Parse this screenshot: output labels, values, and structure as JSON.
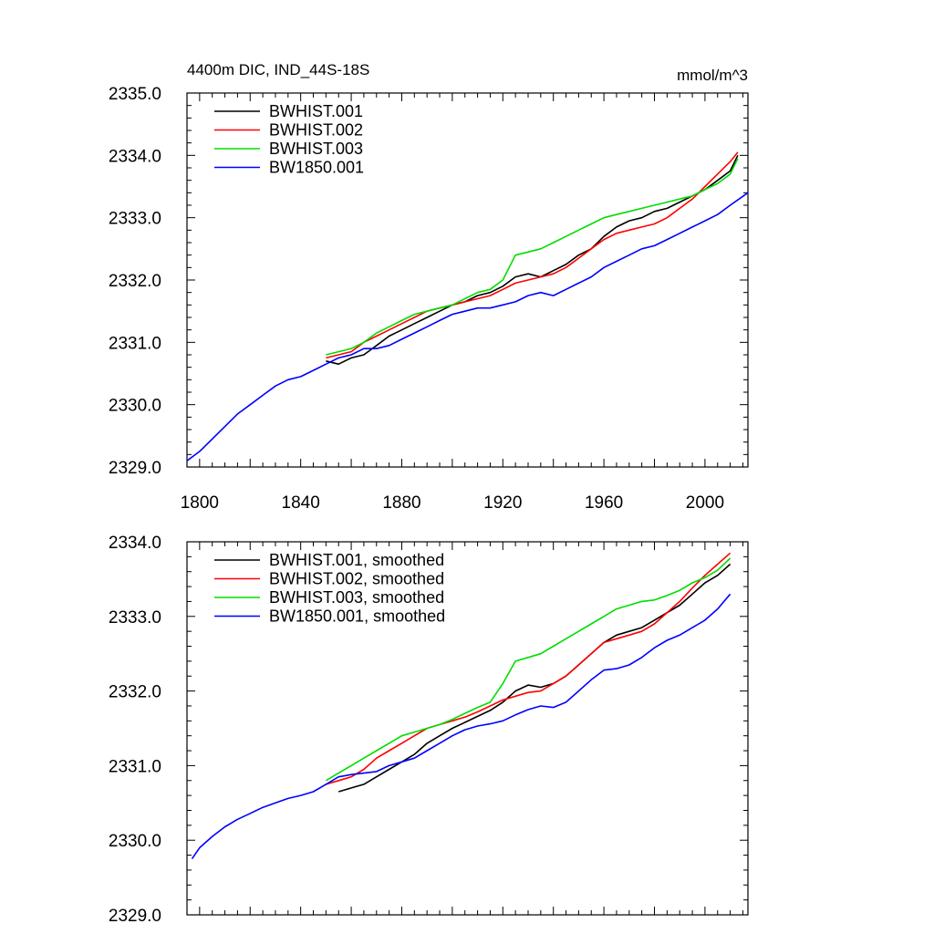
{
  "figure": {
    "title_left": "4400m DIC, IND_44S-18S",
    "title_right": "mmol/m^3"
  },
  "colors": {
    "BWHIST.001": "#000000",
    "BWHIST.002": "#ff0000",
    "BWHIST.003": "#00dd00",
    "BW1850.001": "#0000ff"
  },
  "chart_data": [
    {
      "type": "line",
      "title": "4400m DIC, IND_44S-18S",
      "units": "mmol/m^3",
      "xlim": [
        1795,
        2017
      ],
      "ylim": [
        2329.0,
        2335.0
      ],
      "xticks": [
        1800,
        1840,
        1880,
        1920,
        1960,
        2000
      ],
      "yticks": [
        2329.0,
        2330.0,
        2331.0,
        2332.0,
        2333.0,
        2334.0,
        2335.0
      ],
      "ytick_labels": [
        "2329.0",
        "2330.0",
        "2331.0",
        "2332.0",
        "2333.0",
        "2334.0",
        "2335.0"
      ],
      "xtick_labels": [
        "1800",
        "1840",
        "1880",
        "1920",
        "1960",
        "2000"
      ],
      "legend": "top-left",
      "series": [
        {
          "name": "BWHIST.001",
          "x": [
            1850,
            1855,
            1860,
            1865,
            1870,
            1875,
            1880,
            1885,
            1890,
            1895,
            1900,
            1905,
            1910,
            1915,
            1920,
            1925,
            1930,
            1935,
            1940,
            1945,
            1950,
            1955,
            1960,
            1965,
            1970,
            1975,
            1980,
            1985,
            1990,
            1995,
            2000,
            2005,
            2010,
            2013
          ],
          "y": [
            2330.7,
            2330.65,
            2330.75,
            2330.8,
            2330.95,
            2331.1,
            2331.2,
            2331.3,
            2331.4,
            2331.5,
            2331.6,
            2331.65,
            2331.75,
            2331.8,
            2331.9,
            2332.05,
            2332.1,
            2332.05,
            2332.15,
            2332.25,
            2332.4,
            2332.5,
            2332.7,
            2332.85,
            2332.95,
            2333.0,
            2333.1,
            2333.15,
            2333.25,
            2333.35,
            2333.45,
            2333.6,
            2333.75,
            2334.0
          ]
        },
        {
          "name": "BWHIST.002",
          "x": [
            1850,
            1855,
            1860,
            1865,
            1870,
            1875,
            1880,
            1885,
            1890,
            1895,
            1900,
            1905,
            1910,
            1915,
            1920,
            1925,
            1930,
            1935,
            1940,
            1945,
            1950,
            1955,
            1960,
            1965,
            1970,
            1975,
            1980,
            1985,
            1990,
            1995,
            2000,
            2005,
            2010,
            2013
          ],
          "y": [
            2330.75,
            2330.8,
            2330.85,
            2331.0,
            2331.1,
            2331.2,
            2331.3,
            2331.4,
            2331.5,
            2331.55,
            2331.6,
            2331.65,
            2331.7,
            2331.75,
            2331.85,
            2331.95,
            2332.0,
            2332.05,
            2332.1,
            2332.2,
            2332.35,
            2332.5,
            2332.65,
            2332.75,
            2332.8,
            2332.85,
            2332.9,
            2333.0,
            2333.15,
            2333.3,
            2333.5,
            2333.7,
            2333.9,
            2334.05
          ]
        },
        {
          "name": "BWHIST.003",
          "x": [
            1850,
            1855,
            1860,
            1865,
            1870,
            1875,
            1880,
            1885,
            1890,
            1895,
            1900,
            1905,
            1910,
            1915,
            1920,
            1925,
            1930,
            1935,
            1940,
            1945,
            1950,
            1955,
            1960,
            1965,
            1970,
            1975,
            1980,
            1985,
            1990,
            1995,
            2000,
            2005,
            2010,
            2013
          ],
          "y": [
            2330.8,
            2330.85,
            2330.9,
            2331.0,
            2331.15,
            2331.25,
            2331.35,
            2331.45,
            2331.5,
            2331.55,
            2331.6,
            2331.7,
            2331.8,
            2331.85,
            2332.0,
            2332.4,
            2332.45,
            2332.5,
            2332.6,
            2332.7,
            2332.8,
            2332.9,
            2333.0,
            2333.05,
            2333.1,
            2333.15,
            2333.2,
            2333.25,
            2333.3,
            2333.35,
            2333.45,
            2333.55,
            2333.7,
            2333.95
          ]
        },
        {
          "name": "BW1850.001",
          "x": [
            1795,
            1800,
            1805,
            1810,
            1815,
            1820,
            1825,
            1830,
            1835,
            1840,
            1845,
            1850,
            1855,
            1860,
            1865,
            1870,
            1875,
            1880,
            1885,
            1890,
            1895,
            1900,
            1905,
            1910,
            1915,
            1920,
            1925,
            1930,
            1935,
            1940,
            1945,
            1950,
            1955,
            1960,
            1965,
            1970,
            1975,
            1980,
            1985,
            1990,
            1995,
            2000,
            2005,
            2010,
            2017
          ],
          "y": [
            2329.1,
            2329.25,
            2329.45,
            2329.65,
            2329.85,
            2330.0,
            2330.15,
            2330.3,
            2330.4,
            2330.45,
            2330.55,
            2330.65,
            2330.75,
            2330.8,
            2330.9,
            2330.9,
            2330.95,
            2331.05,
            2331.15,
            2331.25,
            2331.35,
            2331.45,
            2331.5,
            2331.55,
            2331.55,
            2331.6,
            2331.65,
            2331.75,
            2331.8,
            2331.75,
            2331.85,
            2331.95,
            2332.05,
            2332.2,
            2332.3,
            2332.4,
            2332.5,
            2332.55,
            2332.65,
            2332.75,
            2332.85,
            2332.95,
            2333.05,
            2333.2,
            2333.4
          ]
        }
      ]
    },
    {
      "type": "line",
      "title": "",
      "xlim": [
        1795,
        2017
      ],
      "ylim": [
        2329.0,
        2334.0
      ],
      "yticks": [
        2329.0,
        2330.0,
        2331.0,
        2332.0,
        2333.0,
        2334.0
      ],
      "ytick_labels": [
        "2329.0",
        "2330.0",
        "2331.0",
        "2332.0",
        "2333.0",
        "2334.0"
      ],
      "legend": "top-left",
      "series": [
        {
          "name": "BWHIST.001, smoothed",
          "x": [
            1855,
            1860,
            1865,
            1870,
            1875,
            1880,
            1885,
            1890,
            1895,
            1900,
            1905,
            1910,
            1915,
            1920,
            1925,
            1930,
            1935,
            1940,
            1945,
            1950,
            1955,
            1960,
            1965,
            1970,
            1975,
            1980,
            1985,
            1990,
            1995,
            2000,
            2005,
            2010
          ],
          "y": [
            2330.65,
            2330.7,
            2330.75,
            2330.85,
            2330.95,
            2331.05,
            2331.15,
            2331.3,
            2331.4,
            2331.5,
            2331.58,
            2331.66,
            2331.74,
            2331.85,
            2332.0,
            2332.08,
            2332.05,
            2332.1,
            2332.2,
            2332.35,
            2332.5,
            2332.65,
            2332.75,
            2332.8,
            2332.85,
            2332.95,
            2333.05,
            2333.15,
            2333.3,
            2333.45,
            2333.55,
            2333.7
          ]
        },
        {
          "name": "BWHIST.002, smoothed",
          "x": [
            1850,
            1855,
            1860,
            1865,
            1870,
            1875,
            1880,
            1885,
            1890,
            1895,
            1900,
            1905,
            1910,
            1915,
            1920,
            1925,
            1930,
            1935,
            1940,
            1945,
            1950,
            1955,
            1960,
            1965,
            1970,
            1975,
            1980,
            1985,
            1990,
            1995,
            2000,
            2005,
            2010
          ],
          "y": [
            2330.75,
            2330.8,
            2330.85,
            2330.95,
            2331.1,
            2331.2,
            2331.3,
            2331.4,
            2331.5,
            2331.55,
            2331.6,
            2331.65,
            2331.72,
            2331.8,
            2331.88,
            2331.93,
            2331.98,
            2332.0,
            2332.1,
            2332.2,
            2332.35,
            2332.5,
            2332.65,
            2332.7,
            2332.75,
            2332.8,
            2332.9,
            2333.05,
            2333.2,
            2333.38,
            2333.55,
            2333.7,
            2333.85
          ]
        },
        {
          "name": "BWHIST.003, smoothed",
          "x": [
            1850,
            1855,
            1860,
            1865,
            1870,
            1875,
            1880,
            1885,
            1890,
            1895,
            1900,
            1905,
            1910,
            1915,
            1920,
            1925,
            1930,
            1935,
            1940,
            1945,
            1950,
            1955,
            1960,
            1965,
            1970,
            1975,
            1980,
            1985,
            1990,
            1995,
            2000,
            2005,
            2010
          ],
          "y": [
            2330.8,
            2330.9,
            2331.0,
            2331.1,
            2331.2,
            2331.3,
            2331.4,
            2331.45,
            2331.5,
            2331.55,
            2331.62,
            2331.7,
            2331.78,
            2331.85,
            2332.1,
            2332.4,
            2332.45,
            2332.5,
            2332.6,
            2332.7,
            2332.8,
            2332.9,
            2333.0,
            2333.1,
            2333.15,
            2333.2,
            2333.22,
            2333.28,
            2333.35,
            2333.45,
            2333.52,
            2333.62,
            2333.78
          ]
        },
        {
          "name": "BW1850.001, smoothed",
          "x": [
            1797,
            1800,
            1805,
            1810,
            1815,
            1820,
            1825,
            1830,
            1835,
            1840,
            1845,
            1850,
            1855,
            1860,
            1865,
            1870,
            1875,
            1880,
            1885,
            1890,
            1895,
            1900,
            1905,
            1910,
            1915,
            1920,
            1925,
            1930,
            1935,
            1940,
            1945,
            1950,
            1955,
            1960,
            1965,
            1970,
            1975,
            1980,
            1985,
            1990,
            1995,
            2000,
            2005,
            2010
          ],
          "y": [
            2329.75,
            2329.9,
            2330.05,
            2330.18,
            2330.28,
            2330.36,
            2330.44,
            2330.5,
            2330.56,
            2330.6,
            2330.65,
            2330.75,
            2330.85,
            2330.88,
            2330.9,
            2330.92,
            2331.0,
            2331.05,
            2331.1,
            2331.2,
            2331.3,
            2331.4,
            2331.48,
            2331.53,
            2331.56,
            2331.6,
            2331.68,
            2331.75,
            2331.8,
            2331.78,
            2331.85,
            2332.0,
            2332.15,
            2332.28,
            2332.3,
            2332.35,
            2332.45,
            2332.58,
            2332.68,
            2332.75,
            2332.85,
            2332.95,
            2333.1,
            2333.3
          ]
        }
      ]
    }
  ]
}
